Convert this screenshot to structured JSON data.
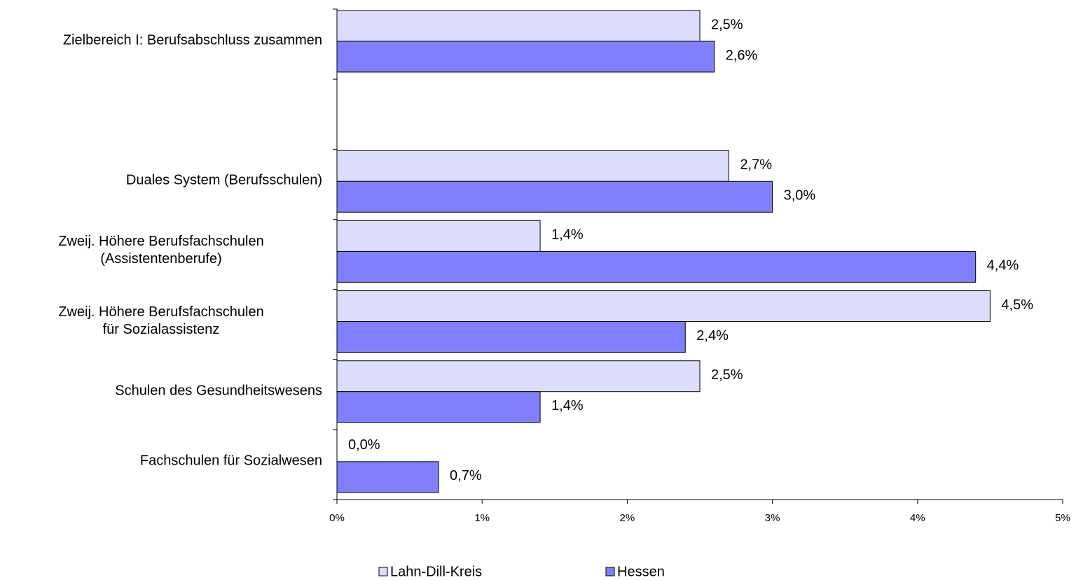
{
  "chart_data": {
    "type": "bar",
    "orientation": "horizontal",
    "categories": [
      "Zielbereich I: Berufsabschluss zusammen",
      null,
      "Duales System (Berufsschulen)",
      "Zweij. Höhere Berufsfachschulen\n(Assistentenberufe)",
      "Zweij. Höhere Berufsfachschulen\nfür Sozialassistenz",
      "Schulen des Gesundheitswesens",
      "Fachschulen für Sozialwesen"
    ],
    "series": [
      {
        "name": "Lahn-Dill-Kreis",
        "color": "#dcdcfc",
        "values": [
          2.5,
          null,
          2.7,
          1.4,
          4.5,
          2.5,
          0.0
        ],
        "value_labels": [
          "2,5%",
          null,
          "2,7%",
          "1,4%",
          "4,5%",
          "2,5%",
          "0,0%"
        ]
      },
      {
        "name": "Hessen",
        "color": "#8080ff",
        "values": [
          2.6,
          null,
          3.0,
          4.4,
          2.4,
          1.4,
          0.7
        ],
        "value_labels": [
          "2,6%",
          null,
          "3,0%",
          "4,4%",
          "2,4%",
          "1,4%",
          "0,7%"
        ]
      }
    ],
    "xlim": [
      0,
      5
    ],
    "xticks": [
      {
        "value": 0,
        "label": "0%"
      },
      {
        "value": 1,
        "label": "1%"
      },
      {
        "value": 2,
        "label": "2%"
      },
      {
        "value": 3,
        "label": "3%"
      },
      {
        "value": 4,
        "label": "4%"
      },
      {
        "value": 5,
        "label": "5%"
      }
    ],
    "legend": "bottom"
  }
}
